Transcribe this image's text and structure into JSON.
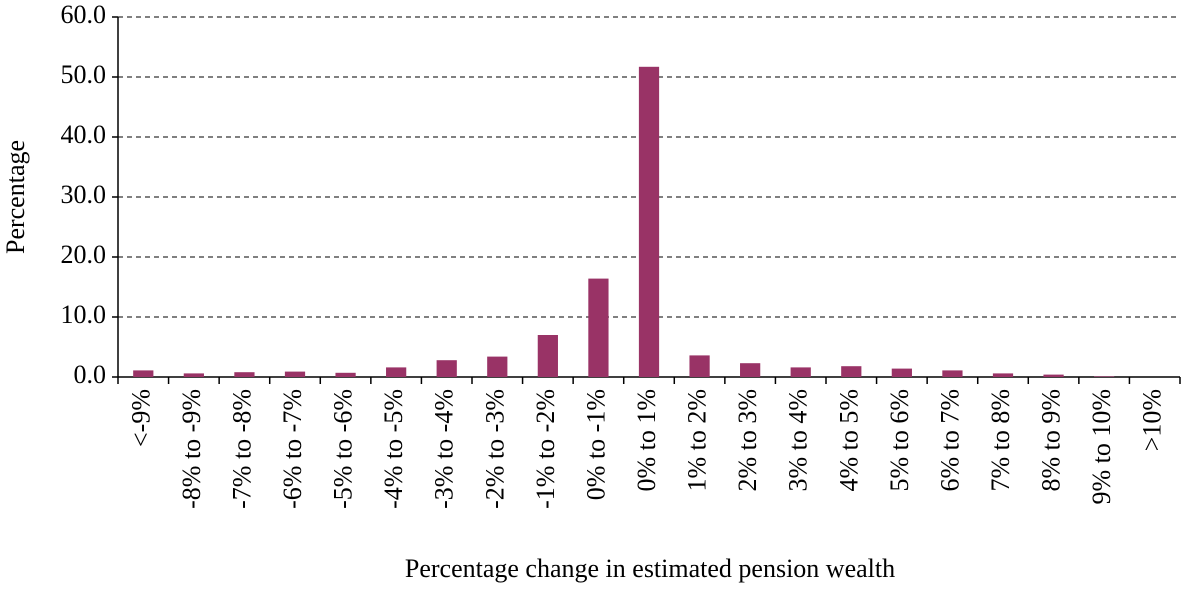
{
  "chart_data": {
    "type": "bar",
    "x_label": "Percentage change in estimated pension wealth",
    "y_label": "Percentage",
    "categories": [
      "<-9%",
      "-8% to -9%",
      "-7% to -8%",
      "-6% to -7%",
      "-5% to -6%",
      "-4% to -5%",
      "-3% to -4%",
      "-2% to -3%",
      "-1% to -2%",
      "0% to -1%",
      "0% to 1%",
      "1% to 2%",
      "2% to 3%",
      "3% to 4%",
      "4% to 5%",
      "5% to 6%",
      "6% to 7%",
      "7% to 8%",
      "8% to 9%",
      "9% to 10%",
      ">10%"
    ],
    "values": [
      1.1,
      0.6,
      0.8,
      0.9,
      0.7,
      1.6,
      2.8,
      3.4,
      7.0,
      16.4,
      51.7,
      3.6,
      2.3,
      1.6,
      1.8,
      1.4,
      1.1,
      0.6,
      0.4,
      0.1,
      0
    ],
    "color": "#993366",
    "ylim": [
      0,
      60
    ],
    "yticks": [
      {
        "value": 0,
        "label": "0.0"
      },
      {
        "value": 10,
        "label": "10.0"
      },
      {
        "value": 20,
        "label": "20.0"
      },
      {
        "value": 30,
        "label": "30.0"
      },
      {
        "value": 40,
        "label": "40.0"
      },
      {
        "value": 50,
        "label": "50.0"
      },
      {
        "value": 60,
        "label": "60.0"
      }
    ],
    "grid": true
  }
}
